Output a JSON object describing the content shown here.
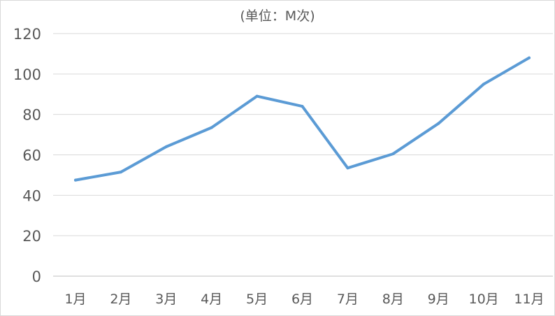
{
  "chart_data": {
    "type": "line",
    "title": "",
    "subtitle": "(单位：M次)",
    "xlabel": "",
    "ylabel": "",
    "categories": [
      "1月",
      "2月",
      "3月",
      "4月",
      "5月",
      "6月",
      "7月",
      "8月",
      "9月",
      "10月",
      "11月"
    ],
    "series": [
      {
        "values": [
          47.5,
          51.5,
          64,
          73.5,
          89,
          84,
          53.5,
          60.5,
          75.5,
          95,
          108
        ]
      }
    ],
    "ylim": [
      0,
      120
    ],
    "yticks": [
      "0",
      "20",
      "40",
      "60",
      "80",
      "100",
      "120"
    ],
    "grid": true,
    "legend": "none",
    "colors": {
      "series": "#5b9bd5",
      "grid": "#d9d9d9",
      "text": "#595959"
    }
  }
}
